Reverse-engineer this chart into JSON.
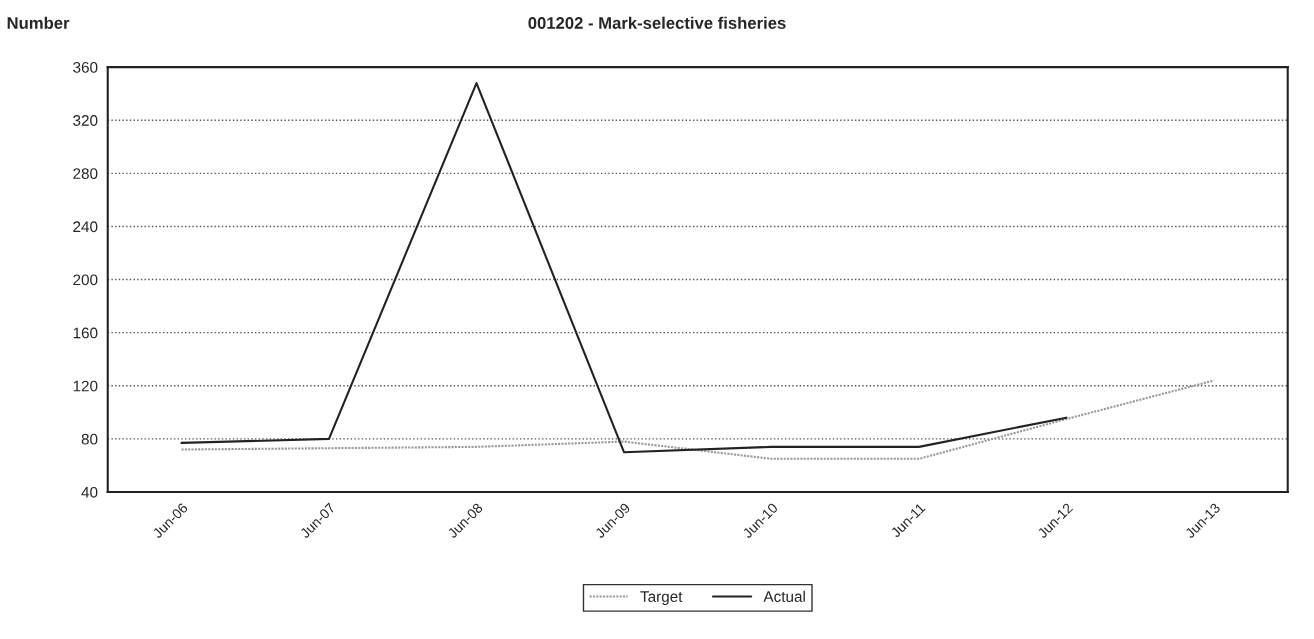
{
  "chart_data": {
    "type": "line",
    "title": "001202 - Mark-selective fisheries",
    "ylabel": "Number",
    "categories": [
      "Jun-06",
      "Jun-07",
      "Jun-08",
      "Jun-09",
      "Jun-10",
      "Jun-11",
      "Jun-12",
      "Jun-13"
    ],
    "series": [
      {
        "name": "Target",
        "color": "#999999",
        "line_style": "dotted",
        "values": [
          72,
          73,
          74,
          78,
          65,
          65,
          95,
          124
        ]
      },
      {
        "name": "Actual",
        "color": "#222222",
        "line_style": "solid",
        "values": [
          77,
          80,
          348,
          70,
          74,
          74,
          96,
          null
        ]
      }
    ],
    "ylim": [
      40,
      360
    ],
    "yticks": [
      40,
      80,
      120,
      160,
      200,
      240,
      280,
      320,
      360
    ],
    "grid": "y",
    "legend": "bottom"
  }
}
